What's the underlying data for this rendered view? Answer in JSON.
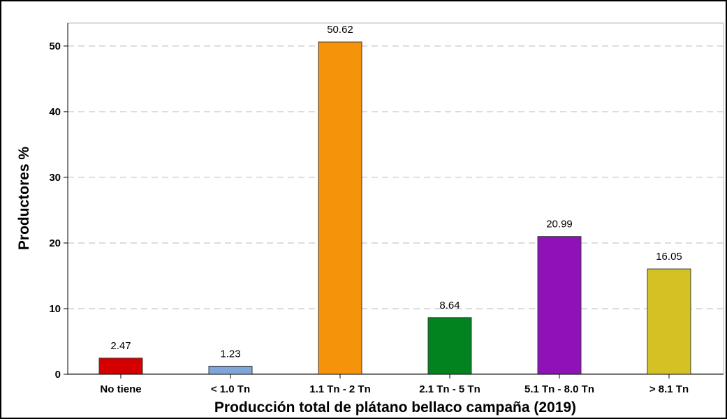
{
  "chart_data": {
    "type": "bar",
    "xlabel": "Producción total de plátano bellaco campaña (2019)",
    "ylabel": "Productores %",
    "categories": [
      "No tiene",
      "< 1.0 Tn",
      "1.1 Tn - 2 Tn",
      "2.1 Tn - 5 Tn",
      "5.1 Tn - 8.0 Tn",
      "> 8.1 Tn"
    ],
    "values": [
      2.47,
      1.23,
      50.62,
      8.64,
      20.99,
      16.05
    ],
    "data_labels": [
      "2.47",
      "1.23",
      "50.62",
      "8.64",
      "20.99",
      "16.05"
    ],
    "colors": [
      "#d40000",
      "#7ea6d9",
      "#f5930a",
      "#03831f",
      "#8e12b8",
      "#d4c224"
    ],
    "yticks": [
      0,
      10,
      20,
      30,
      40,
      50
    ],
    "ylim": [
      0,
      53.5
    ],
    "grid": "horizontal-dashed",
    "legend": "none"
  }
}
